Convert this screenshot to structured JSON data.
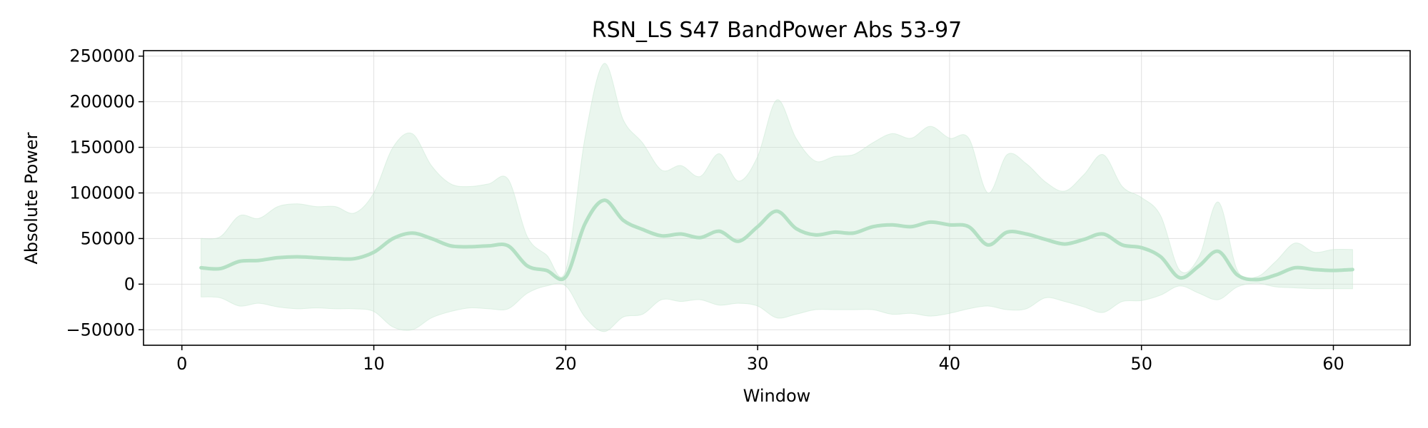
{
  "chart_data": {
    "type": "area",
    "title": "RSN_LS S47 BandPower Abs 53-97",
    "xlabel": "Window",
    "ylabel": "Absolute Power",
    "xlim": [
      -2,
      64
    ],
    "ylim": [
      -67000,
      256000
    ],
    "xticks": [
      0,
      10,
      20,
      30,
      40,
      50,
      60
    ],
    "yticks": [
      -50000,
      0,
      50000,
      100000,
      150000,
      200000,
      250000
    ],
    "ytick_labels": [
      "−50000",
      "0",
      "50000",
      "100000",
      "150000",
      "200000",
      "250000"
    ],
    "grid": true,
    "colors": {
      "line": "#b4e0c4",
      "band": "#c8e8d2"
    },
    "x": [
      1,
      2,
      3,
      4,
      5,
      6,
      7,
      8,
      9,
      10,
      11,
      12,
      13,
      14,
      15,
      16,
      17,
      18,
      19,
      20,
      21,
      22,
      23,
      24,
      25,
      26,
      27,
      28,
      29,
      30,
      31,
      32,
      33,
      34,
      35,
      36,
      37,
      38,
      39,
      40,
      41,
      42,
      43,
      44,
      45,
      46,
      47,
      48,
      49,
      50,
      51,
      52,
      53,
      54,
      55,
      56,
      57,
      58,
      59,
      60,
      61
    ],
    "series": [
      {
        "role": "mean",
        "values": [
          18000,
          17000,
          25000,
          26000,
          29000,
          30000,
          29000,
          28000,
          28000,
          35000,
          50000,
          56000,
          50000,
          42000,
          41000,
          42000,
          42000,
          20000,
          15000,
          8000,
          66000,
          92000,
          70000,
          60000,
          53000,
          55000,
          51000,
          58000,
          47000,
          63000,
          80000,
          61000,
          54000,
          57000,
          56000,
          63000,
          65000,
          63000,
          68000,
          65000,
          63000,
          43000,
          57000,
          55000,
          49000,
          44000,
          49000,
          55000,
          43000,
          40000,
          30000,
          7000,
          20000,
          36000,
          10000,
          5000,
          10000,
          18000,
          16000,
          15000,
          16000
        ]
      },
      {
        "role": "upper",
        "values": [
          50000,
          52000,
          75000,
          72000,
          85000,
          88000,
          85000,
          85000,
          78000,
          100000,
          150000,
          165000,
          130000,
          110000,
          107000,
          110000,
          115000,
          52000,
          32000,
          15000,
          160000,
          242000,
          180000,
          155000,
          125000,
          130000,
          118000,
          143000,
          113000,
          140000,
          202000,
          160000,
          135000,
          140000,
          142000,
          155000,
          165000,
          160000,
          173000,
          160000,
          160000,
          100000,
          142000,
          132000,
          112000,
          102000,
          120000,
          142000,
          107000,
          95000,
          75000,
          15000,
          30000,
          90000,
          15000,
          8000,
          25000,
          45000,
          35000,
          38000,
          38000
        ]
      },
      {
        "role": "lower",
        "values": [
          -14000,
          -15000,
          -24000,
          -21000,
          -25000,
          -27000,
          -26000,
          -27000,
          -27000,
          -30000,
          -47000,
          -50000,
          -37000,
          -30000,
          -26000,
          -27000,
          -27000,
          -10000,
          -2000,
          -2000,
          -36000,
          -52000,
          -36000,
          -33000,
          -17000,
          -19000,
          -17000,
          -23000,
          -21000,
          -24000,
          -37000,
          -33000,
          -28000,
          -28000,
          -28000,
          -28000,
          -33000,
          -32000,
          -35000,
          -32000,
          -27000,
          -24000,
          -28000,
          -27000,
          -15000,
          -19000,
          -25000,
          -31000,
          -19000,
          -18000,
          -12000,
          -2000,
          -10000,
          -17000,
          -3000,
          1000,
          -3000,
          -4000,
          -5000,
          -5000,
          -5000
        ]
      }
    ]
  }
}
